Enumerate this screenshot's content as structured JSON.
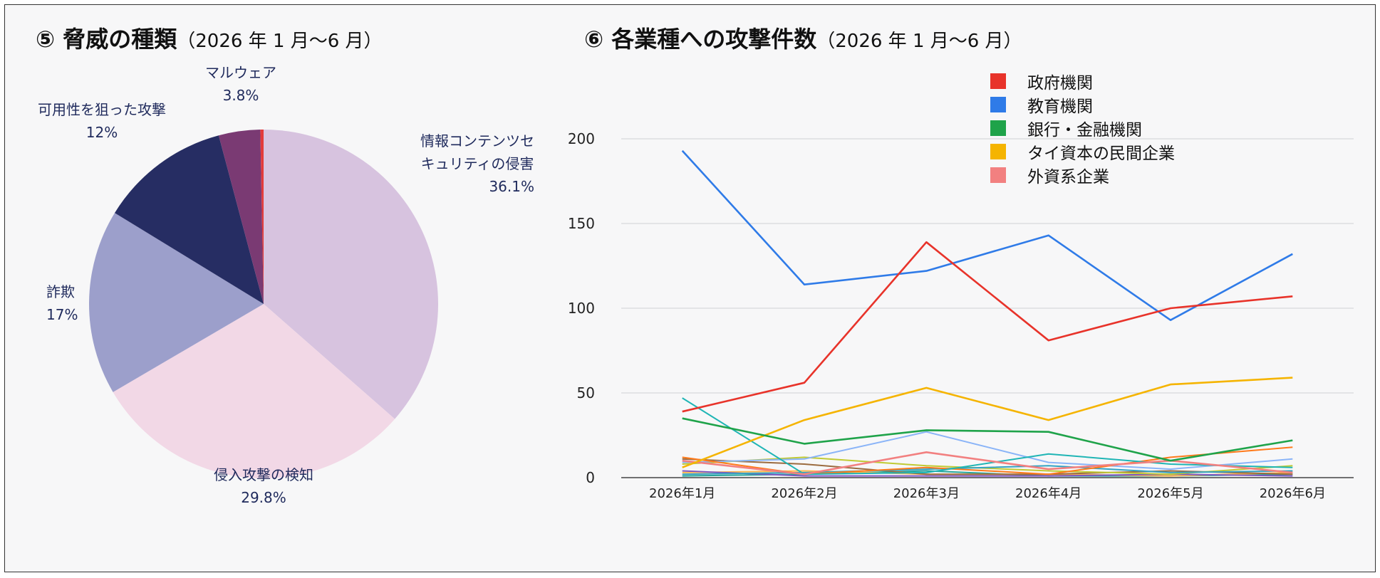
{
  "pie_panel": {
    "title": "⑤ 脅威の種類",
    "subtitle": "（2026 年 1 月～6 月）"
  },
  "line_panel": {
    "title": "⑥ 各業種への攻撃件数",
    "subtitle": "（2026 年 1 月～6 月）"
  },
  "chart_data": [
    {
      "type": "pie",
      "title": "⑤ 脅威の種類（2026 年 1 月～6 月）",
      "slices": [
        {
          "label_lines": [
            "情報コンテンツセ",
            "キュリティの侵害"
          ],
          "value_label": "36.1%",
          "value": 36.1,
          "color": "#d7c3df"
        },
        {
          "label_lines": [
            "侵入攻撃の検知"
          ],
          "value_label": "29.8%",
          "value": 29.8,
          "color": "#f2d8e6"
        },
        {
          "label_lines": [
            "詐欺"
          ],
          "value_label": "17%",
          "value": 17.0,
          "color": "#9c9fcb"
        },
        {
          "label_lines": [
            "可用性を狙った攻撃"
          ],
          "value_label": "12%",
          "value": 12.0,
          "color": "#262d63"
        },
        {
          "label_lines": [
            "マルウェア"
          ],
          "value_label": "3.8%",
          "value": 3.8,
          "color": "#7a3a73"
        },
        {
          "label_lines": [],
          "value_label": "",
          "value": 0.3,
          "color": "#e23b3b"
        }
      ]
    },
    {
      "type": "line",
      "title": "⑥ 各業種への攻撃件数（2026 年 1 月～6 月）",
      "categories": [
        "2026年1月",
        "2026年2月",
        "2026年3月",
        "2026年4月",
        "2026年5月",
        "2026年6月"
      ],
      "ylim": [
        0,
        220
      ],
      "yticks": [
        0,
        50,
        100,
        150,
        200
      ],
      "grid": true,
      "legend_position": "top",
      "series": [
        {
          "name": "政府機関",
          "color": "#e8332a",
          "values": [
            39,
            56,
            139,
            81,
            100,
            107
          ]
        },
        {
          "name": "教育機関",
          "color": "#2f7be8",
          "values": [
            193,
            114,
            122,
            143,
            93,
            132
          ]
        },
        {
          "name": "銀行・金融機関",
          "color": "#1fa34a",
          "values": [
            35,
            20,
            28,
            27,
            10,
            22
          ]
        },
        {
          "name": "タイ資本の民間企業",
          "color": "#f5b400",
          "values": [
            6,
            34,
            53,
            34,
            55,
            59
          ]
        },
        {
          "name": "外資系企業",
          "color": "#f28080",
          "values": [
            10,
            2,
            15,
            5,
            10,
            3
          ]
        },
        {
          "color": "#1fb5b5",
          "values": [
            47,
            2,
            3,
            14,
            8,
            6
          ]
        },
        {
          "color": "#ff7a1a",
          "values": [
            12,
            2,
            6,
            2,
            12,
            18
          ]
        },
        {
          "color": "#8ab4f8",
          "values": [
            9,
            11,
            27,
            9,
            5,
            11
          ]
        },
        {
          "color": "#34a2c2",
          "values": [
            2,
            3,
            5,
            7,
            3,
            4
          ]
        },
        {
          "color": "#c0ca33",
          "values": [
            8,
            12,
            7,
            4,
            2,
            7
          ]
        },
        {
          "color": "#9b6b3f",
          "values": [
            11,
            8,
            2,
            2,
            4,
            2
          ]
        },
        {
          "color": "#7e57c2",
          "values": [
            4,
            1,
            1,
            1,
            2,
            1
          ]
        },
        {
          "color": "#ffb74d",
          "values": [
            3,
            4,
            2,
            2,
            1,
            3
          ]
        },
        {
          "color": "#26a69a",
          "values": [
            1,
            2,
            4,
            1,
            1,
            2
          ]
        }
      ]
    }
  ]
}
